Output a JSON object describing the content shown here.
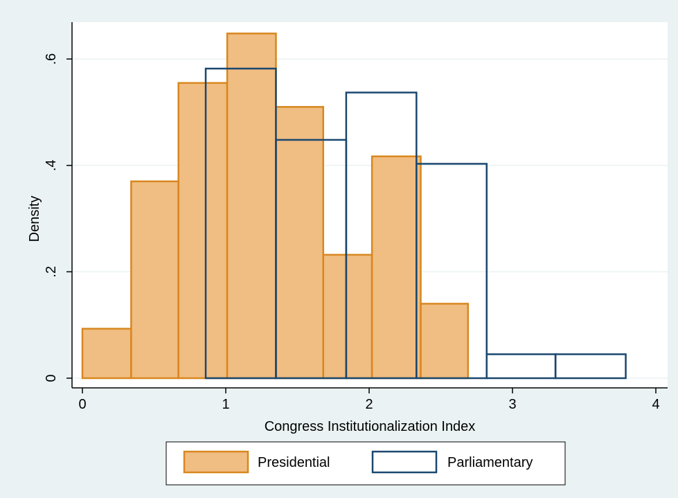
{
  "chart_data": {
    "type": "bar",
    "title": "",
    "xlabel": "Congress Institutionalization Index",
    "ylabel": "Density",
    "xlim": [
      0,
      4
    ],
    "ylim": [
      0,
      0.65
    ],
    "x_ticks": [
      0,
      1,
      2,
      3,
      4
    ],
    "x_tick_labels": [
      "0",
      "1",
      "2",
      "3",
      "4"
    ],
    "y_ticks": [
      0,
      0.2,
      0.4,
      0.6
    ],
    "y_tick_labels": [
      "0",
      ".2",
      ".4",
      ".6"
    ],
    "grid": true,
    "legend_position": "bottom",
    "series": [
      {
        "name": "Presidential",
        "style": "filled",
        "fill_color": "#f0bd82",
        "edge_color": "#d8871f",
        "bins": [
          {
            "start": 0.0,
            "end": 0.34,
            "value": 0.093
          },
          {
            "start": 0.34,
            "end": 0.67,
            "value": 0.37
          },
          {
            "start": 0.67,
            "end": 1.01,
            "value": 0.555
          },
          {
            "start": 1.01,
            "end": 1.35,
            "value": 0.648
          },
          {
            "start": 1.35,
            "end": 1.68,
            "value": 0.51
          },
          {
            "start": 1.68,
            "end": 2.02,
            "value": 0.232
          },
          {
            "start": 2.02,
            "end": 2.36,
            "value": 0.417
          },
          {
            "start": 2.36,
            "end": 2.69,
            "value": 0.14
          }
        ]
      },
      {
        "name": "Parliamentary",
        "style": "outline",
        "fill_color": "none",
        "edge_color": "#1a476f",
        "bins": [
          {
            "start": 0.86,
            "end": 1.35,
            "value": 0.582
          },
          {
            "start": 1.35,
            "end": 1.84,
            "value": 0.448
          },
          {
            "start": 1.84,
            "end": 2.33,
            "value": 0.537
          },
          {
            "start": 2.33,
            "end": 2.82,
            "value": 0.403
          },
          {
            "start": 2.82,
            "end": 3.3,
            "value": 0.045
          },
          {
            "start": 3.3,
            "end": 3.79,
            "value": 0.045
          }
        ]
      }
    ]
  },
  "colors": {
    "background": "#eaf2f3",
    "plot_background": "#ffffff",
    "grid": "#eaf2f3",
    "axis": "#000000"
  }
}
